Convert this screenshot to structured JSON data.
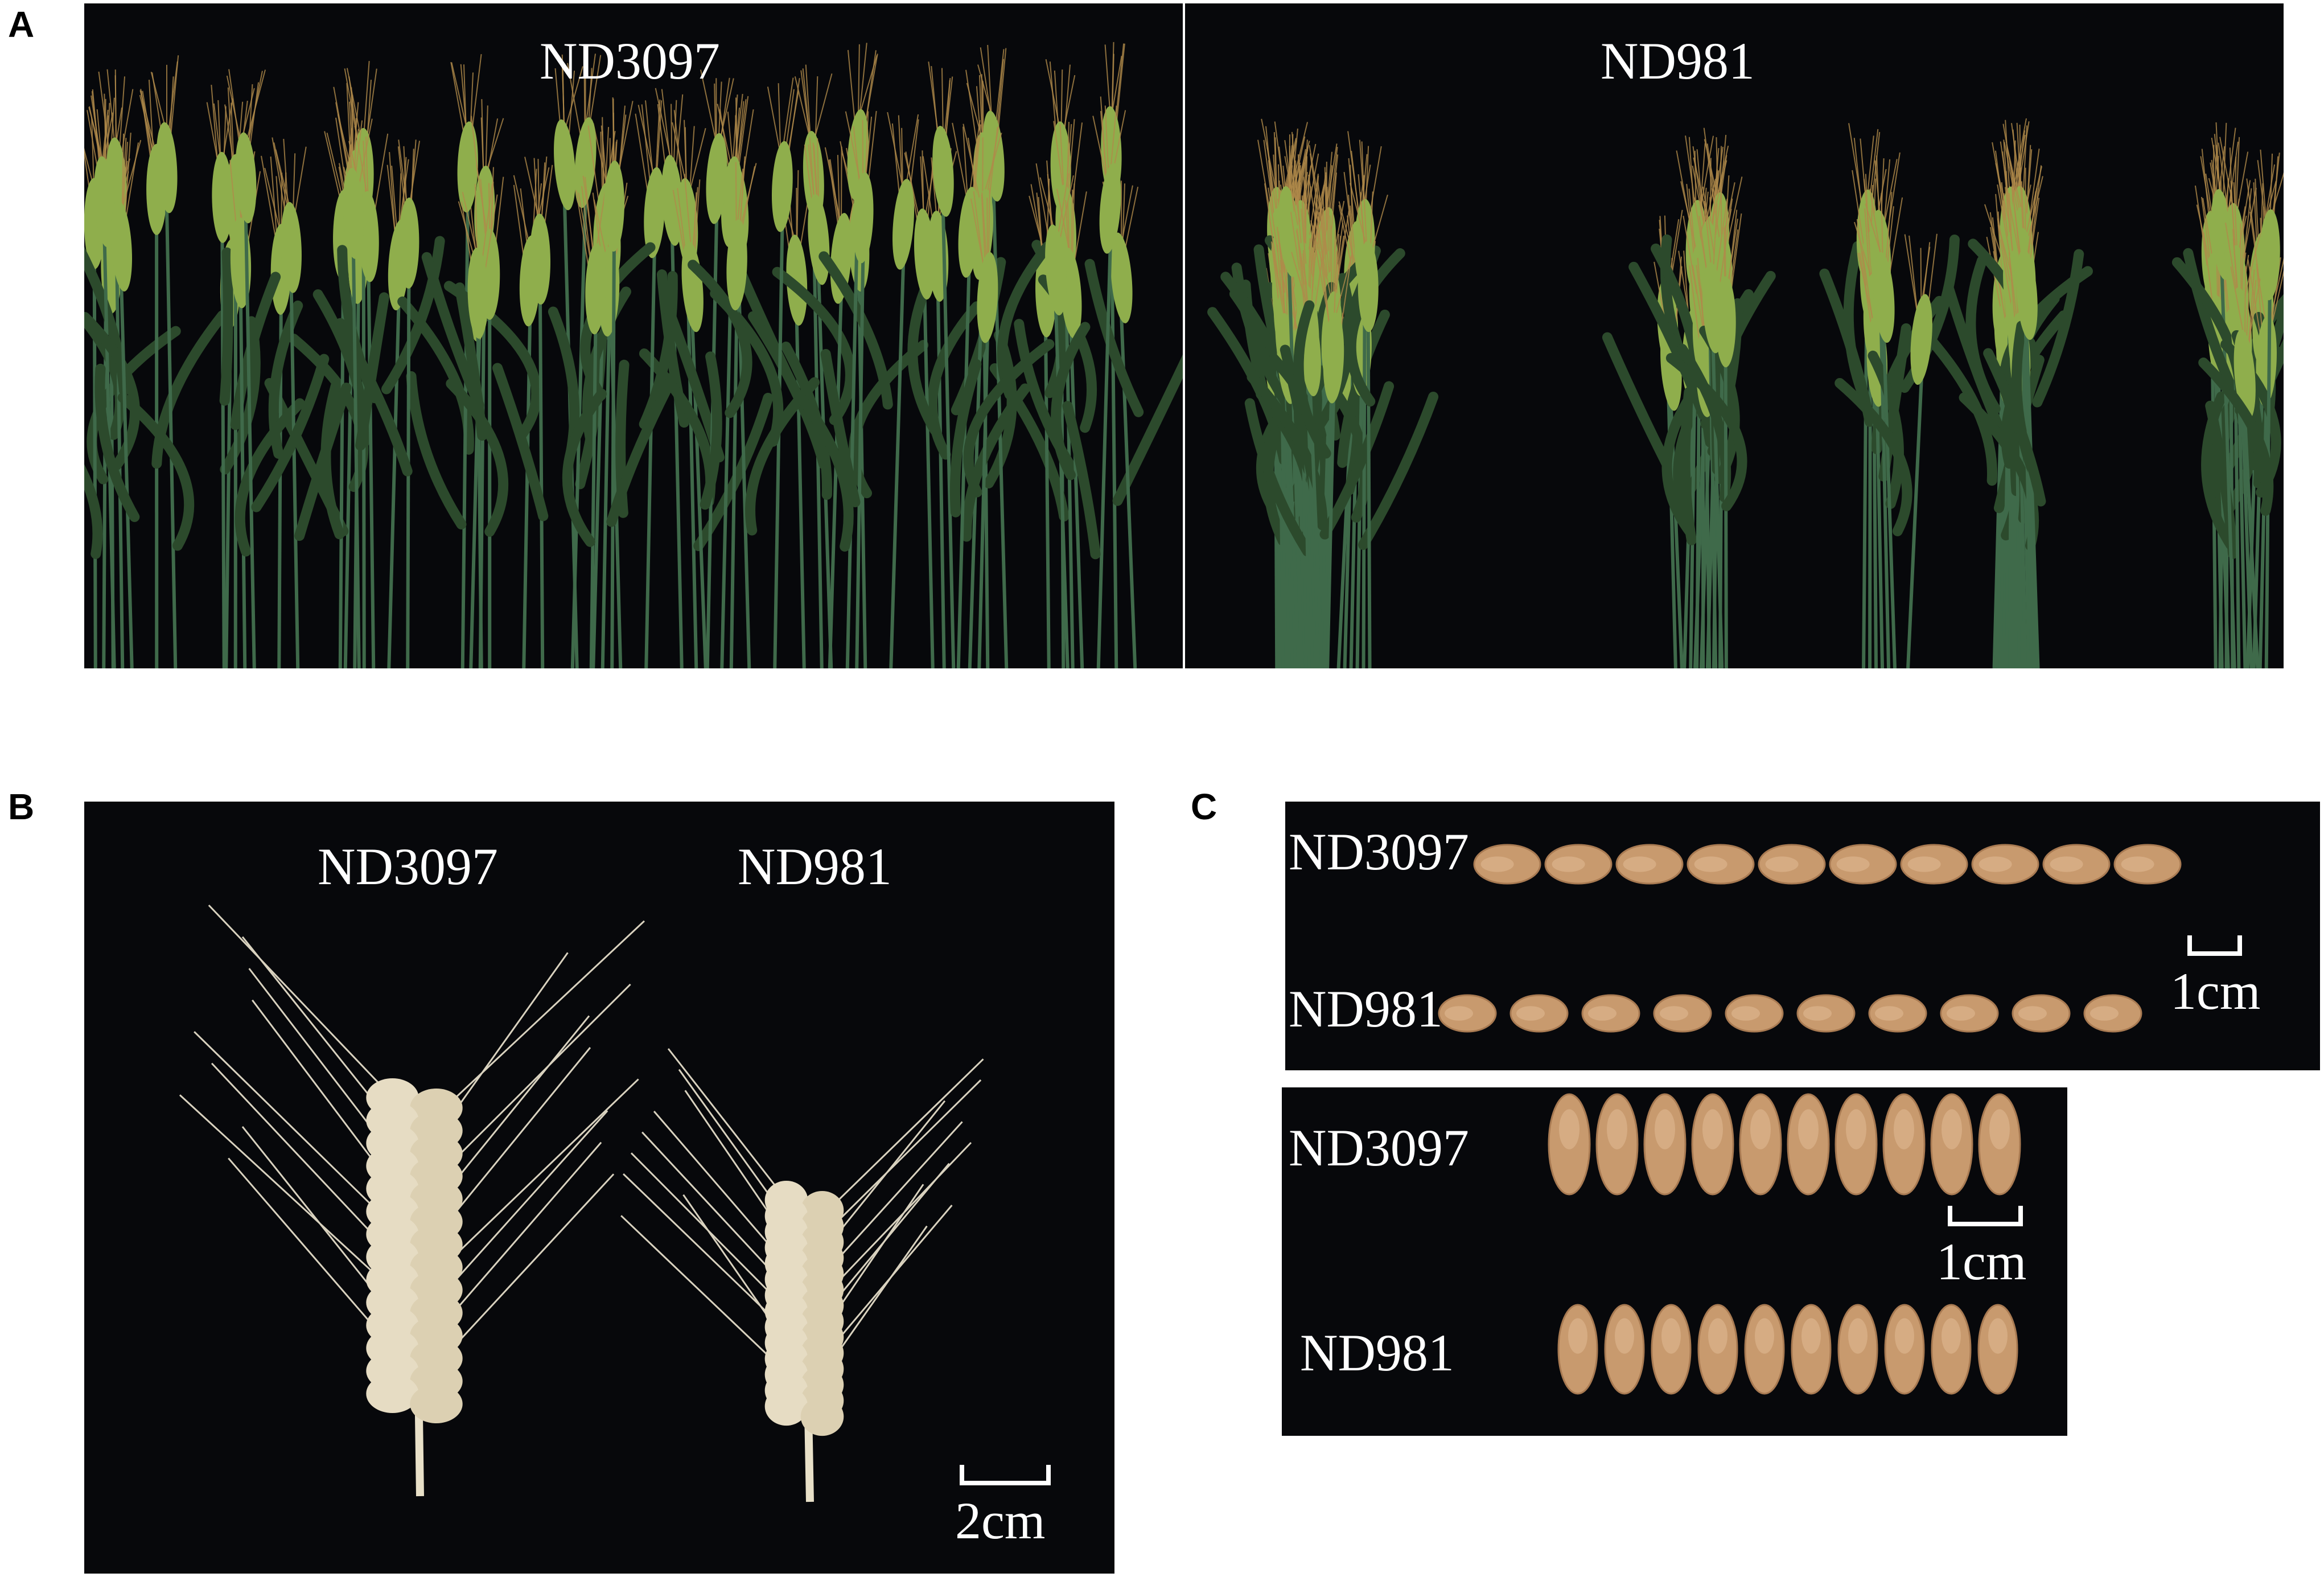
{
  "panels": {
    "A": {
      "letter": "A",
      "left_label": "ND3097",
      "right_label": "ND981"
    },
    "B": {
      "letter": "B",
      "left_label": "ND3097",
      "right_label": "ND981",
      "scale_label": "2cm"
    },
    "C": {
      "letter": "C",
      "top": {
        "row1_label": "ND3097",
        "row2_label": "ND981",
        "scale_label": "1cm",
        "grains_per_row": 10
      },
      "bottom": {
        "row1_label": "ND3097",
        "row2_label": "ND981",
        "scale_label": "1cm",
        "grains_per_row": 10
      }
    }
  },
  "colors": {
    "background": "#07080b",
    "wheat_green": "#8fae4c",
    "leaf_green": "#2e4a2a",
    "dry_spike": "#e6dcc3",
    "grain": "#c89a6e"
  }
}
